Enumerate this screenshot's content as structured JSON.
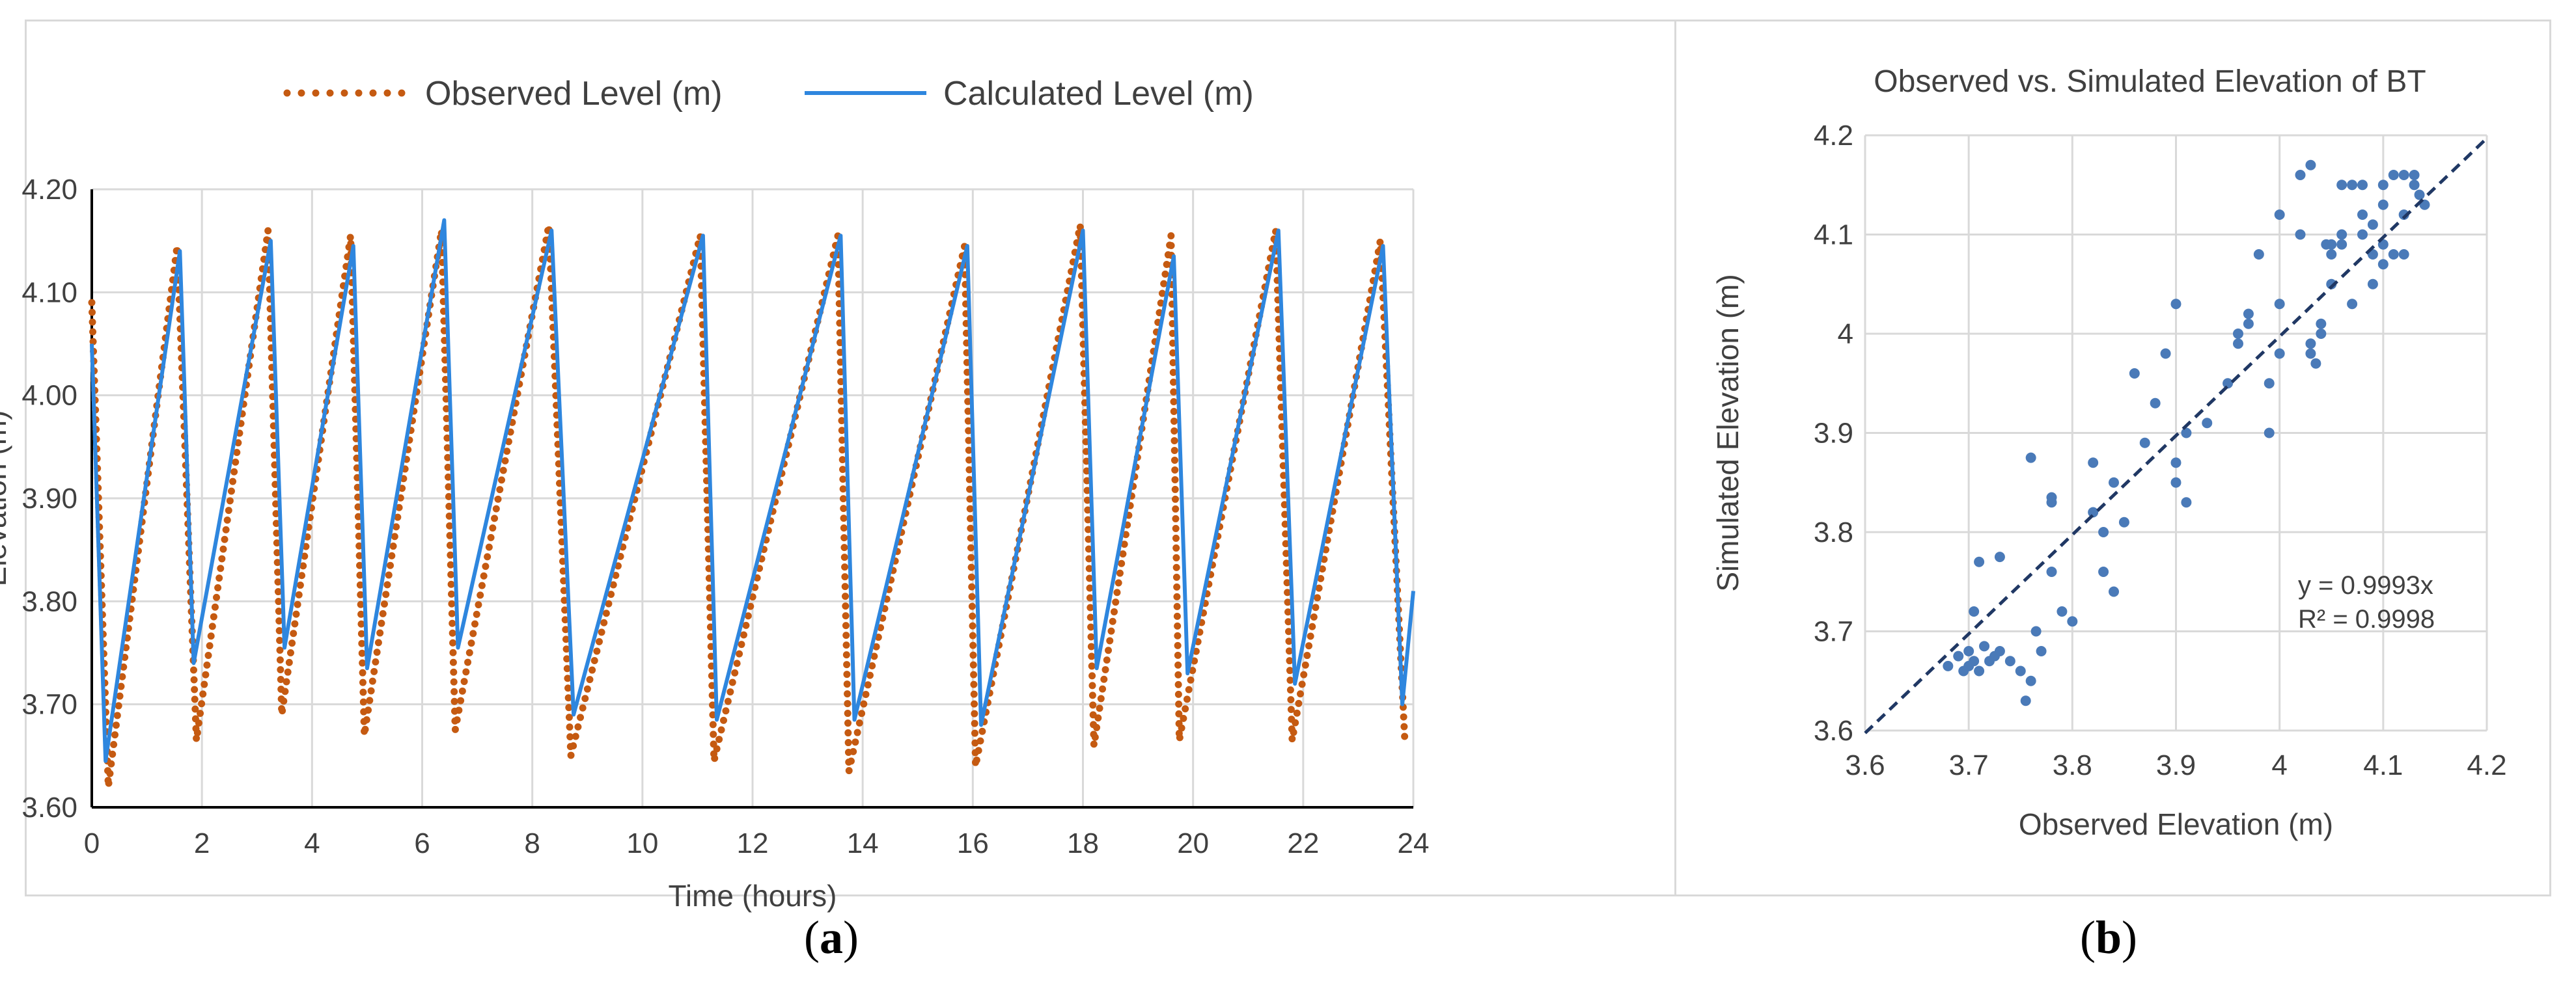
{
  "chart_data": [
    {
      "id": "a",
      "type": "line",
      "caption": "a",
      "xlabel": "Time (hours)",
      "ylabel": "Elevation (m)",
      "xlim": [
        0,
        24
      ],
      "ylim": [
        3.6,
        4.2
      ],
      "xticks": [
        "0",
        "2",
        "4",
        "6",
        "8",
        "10",
        "12",
        "14",
        "16",
        "18",
        "20",
        "22",
        "24"
      ],
      "yticks": [
        "3.60",
        "3.70",
        "3.80",
        "3.90",
        "4.00",
        "4.10",
        "4.20"
      ],
      "grid": true,
      "legend_position": "top",
      "series": [
        {
          "name": "Observed Level (m)",
          "style": "dotted",
          "color": "#c55a11",
          "x": [
            0,
            0.3,
            1.55,
            1.9,
            3.2,
            3.45,
            4.7,
            4.95,
            6.35,
            6.6,
            8.3,
            8.7,
            11.05,
            11.3,
            13.55,
            13.75,
            15.85,
            16.05,
            17.95,
            18.2,
            19.6,
            19.75,
            21.5,
            21.8,
            23.4,
            23.85
          ],
          "y": [
            4.09,
            3.62,
            4.145,
            3.665,
            4.16,
            3.69,
            4.155,
            3.67,
            4.16,
            3.675,
            4.165,
            3.65,
            4.155,
            3.645,
            4.155,
            3.635,
            4.145,
            3.64,
            4.165,
            3.66,
            4.155,
            3.665,
            4.16,
            3.665,
            4.15,
            3.66
          ]
        },
        {
          "name": "Calculated Level (m)",
          "style": "solid",
          "color": "#2e86de",
          "x": [
            0,
            0.25,
            1.6,
            1.85,
            3.25,
            3.5,
            4.75,
            5.0,
            6.4,
            6.65,
            8.35,
            8.75,
            11.1,
            11.35,
            13.6,
            13.85,
            15.9,
            16.15,
            18.0,
            18.25,
            19.65,
            19.9,
            21.55,
            21.85,
            23.45,
            23.8,
            24
          ],
          "y": [
            4.05,
            3.645,
            4.14,
            3.74,
            4.15,
            3.755,
            4.145,
            3.735,
            4.17,
            3.755,
            4.16,
            3.69,
            4.155,
            3.685,
            4.155,
            3.685,
            4.145,
            3.68,
            4.16,
            3.735,
            4.135,
            3.73,
            4.16,
            3.72,
            4.145,
            3.7,
            3.81
          ]
        }
      ]
    },
    {
      "id": "b",
      "type": "scatter",
      "caption": "b",
      "title": "Observed vs. Simulated Elevation of BT",
      "xlabel": "Observed Elevation (m)",
      "ylabel": "Simulated Elevation (m)",
      "xlim": [
        3.6,
        4.2
      ],
      "ylim": [
        3.6,
        4.2
      ],
      "xticks": [
        "3.6",
        "3.7",
        "3.8",
        "3.9",
        "4",
        "4.1",
        "4.2"
      ],
      "yticks": [
        "3.6",
        "3.7",
        "3.8",
        "3.9",
        "4",
        "4.1",
        "4.2"
      ],
      "grid": true,
      "color": "#4a7ab8",
      "trendline": {
        "slope": 0.9993,
        "color": "#203864",
        "style": "dashed"
      },
      "equation": "y = 0.9993x",
      "r_squared": "R² = 0.9998",
      "points": [
        [
          3.68,
          3.665
        ],
        [
          3.69,
          3.675
        ],
        [
          3.695,
          3.66
        ],
        [
          3.7,
          3.665
        ],
        [
          3.705,
          3.67
        ],
        [
          3.71,
          3.66
        ],
        [
          3.72,
          3.67
        ],
        [
          3.73,
          3.68
        ],
        [
          3.74,
          3.67
        ],
        [
          3.75,
          3.66
        ],
        [
          3.755,
          3.63
        ],
        [
          3.76,
          3.65
        ],
        [
          3.7,
          3.68
        ],
        [
          3.715,
          3.685
        ],
        [
          3.725,
          3.675
        ],
        [
          3.705,
          3.72
        ],
        [
          3.73,
          3.775
        ],
        [
          3.71,
          3.77
        ],
        [
          3.77,
          3.68
        ],
        [
          3.765,
          3.7
        ],
        [
          3.78,
          3.76
        ],
        [
          3.79,
          3.72
        ],
        [
          3.8,
          3.71
        ],
        [
          3.76,
          3.875
        ],
        [
          3.78,
          3.83
        ],
        [
          3.78,
          3.835
        ],
        [
          3.82,
          3.82
        ],
        [
          3.83,
          3.8
        ],
        [
          3.83,
          3.76
        ],
        [
          3.84,
          3.74
        ],
        [
          3.82,
          3.87
        ],
        [
          3.85,
          3.81
        ],
        [
          3.84,
          3.85
        ],
        [
          3.87,
          3.89
        ],
        [
          3.86,
          3.96
        ],
        [
          3.89,
          3.98
        ],
        [
          3.88,
          3.93
        ],
        [
          3.9,
          3.87
        ],
        [
          3.9,
          3.85
        ],
        [
          3.91,
          3.83
        ],
        [
          3.9,
          4.03
        ],
        [
          3.91,
          3.9
        ],
        [
          3.93,
          3.91
        ],
        [
          3.95,
          3.95
        ],
        [
          3.96,
          3.99
        ],
        [
          3.96,
          4.0
        ],
        [
          3.97,
          4.02
        ],
        [
          3.97,
          4.01
        ],
        [
          3.98,
          4.08
        ],
        [
          3.99,
          3.9
        ],
        [
          3.99,
          3.95
        ],
        [
          4.0,
          3.98
        ],
        [
          4.0,
          4.03
        ],
        [
          4.0,
          4.12
        ],
        [
          4.02,
          4.16
        ],
        [
          4.02,
          4.1
        ],
        [
          4.03,
          4.17
        ],
        [
          4.03,
          3.99
        ],
        [
          4.03,
          3.98
        ],
        [
          4.035,
          3.97
        ],
        [
          4.04,
          4.01
        ],
        [
          4.04,
          4.0
        ],
        [
          4.05,
          4.09
        ],
        [
          4.05,
          4.08
        ],
        [
          4.06,
          4.1
        ],
        [
          4.06,
          4.15
        ],
        [
          4.07,
          4.15
        ],
        [
          4.07,
          4.03
        ],
        [
          4.08,
          4.12
        ],
        [
          4.08,
          4.15
        ],
        [
          4.09,
          4.05
        ],
        [
          4.09,
          4.08
        ],
        [
          4.1,
          4.07
        ],
        [
          4.1,
          4.09
        ],
        [
          4.1,
          4.13
        ],
        [
          4.11,
          4.16
        ],
        [
          4.11,
          4.08
        ],
        [
          4.12,
          4.08
        ],
        [
          4.12,
          4.16
        ],
        [
          4.13,
          4.16
        ],
        [
          4.13,
          4.15
        ],
        [
          4.135,
          4.14
        ],
        [
          4.14,
          4.13
        ],
        [
          4.1,
          4.15
        ],
        [
          4.09,
          4.11
        ],
        [
          4.08,
          4.1
        ],
        [
          4.12,
          4.12
        ],
        [
          4.06,
          4.09
        ],
        [
          4.05,
          4.05
        ],
        [
          4.045,
          4.09
        ]
      ]
    }
  ]
}
